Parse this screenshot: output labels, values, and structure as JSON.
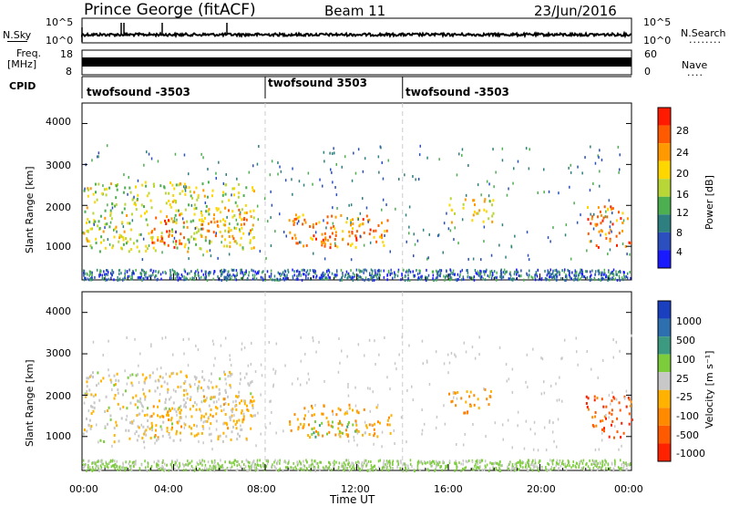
{
  "header": {
    "station": "Prince George (fitACF)",
    "beam": "Beam 11",
    "date": "23/Jun/2016"
  },
  "noise_panel": {
    "left_label": "N.Sky",
    "right_label": "N.Search",
    "right_dots": "........",
    "y_ticks": [
      "10^5",
      "10^0"
    ]
  },
  "freq_panel": {
    "left_label_line1": "Freq.",
    "left_label_line2": "[MHz]",
    "right_label": "Nave",
    "right_dots": "....",
    "left_ticks": [
      "18",
      "8"
    ],
    "right_ticks": [
      "60",
      "0"
    ]
  },
  "cpid_panel": {
    "label": "CPID",
    "segments": [
      {
        "name": "twofsound -3503",
        "start_hour": 0,
        "end_hour": 8
      },
      {
        "name": "twofsound 3503",
        "start_hour": 8,
        "end_hour": 14
      },
      {
        "name": "twofsound -3503",
        "start_hour": 14,
        "end_hour": 24
      }
    ]
  },
  "power_panel": {
    "ylabel": "Slant Range [km]",
    "y_ticks": [
      "4000",
      "3000",
      "2000",
      "1000"
    ],
    "colorbar_label": "Power [dB]",
    "colorbar_ticks": [
      "28",
      "24",
      "20",
      "16",
      "12",
      "8",
      "4"
    ],
    "colors": [
      "#1a1aff",
      "#2b4fbf",
      "#2e7f7f",
      "#4caf50",
      "#b8d636",
      "#ffd700",
      "#ff9900",
      "#ff5a00",
      "#ff1a00"
    ]
  },
  "velocity_panel": {
    "ylabel": "Slant Range [km]",
    "y_ticks": [
      "4000",
      "3000",
      "2000",
      "1000"
    ],
    "colorbar_label": "Velocity [m s⁻¹]",
    "colorbar_ticks": [
      "1000",
      "500",
      "100",
      "25",
      "-25",
      "-100",
      "-500",
      "-1000"
    ],
    "colors": [
      "#1a3fbf",
      "#2e6fb0",
      "#3c9a80",
      "#7ccc3c",
      "#c8c8c8",
      "#ffb300",
      "#ff8a00",
      "#ff5a00",
      "#ff2200"
    ]
  },
  "x_axis": {
    "label": "Time UT",
    "ticks": [
      "00:00",
      "04:00",
      "08:00",
      "12:00",
      "16:00",
      "20:00",
      "00:00"
    ]
  },
  "chart_data": {
    "type": "heatmap",
    "x_range_hours": [
      0,
      24
    ],
    "y_range_km": [
      180,
      4500
    ],
    "power_range_db": [
      0,
      30
    ],
    "velocity_range_ms": [
      -1000,
      1000
    ],
    "cpid_boundaries_hours": [
      8,
      14
    ],
    "echo_regions": [
      {
        "hours": [
          0,
          7.5
        ],
        "range_km": [
          900,
          2600
        ],
        "power_db": 16,
        "velocity_ms": -50
      },
      {
        "hours": [
          3,
          4.5
        ],
        "range_km": [
          1000,
          1800
        ],
        "power_db": 26,
        "velocity_ms": -300
      },
      {
        "hours": [
          5,
          7.5
        ],
        "range_km": [
          1200,
          2000
        ],
        "power_db": 22,
        "velocity_ms": -200
      },
      {
        "hours": [
          9,
          13.5
        ],
        "range_km": [
          1000,
          1800
        ],
        "power_db": 22,
        "velocity_ms": -300
      },
      {
        "hours": [
          10,
          12
        ],
        "range_km": [
          1000,
          1400
        ],
        "power_db": 27,
        "velocity_ms": 300
      },
      {
        "hours": [
          16,
          18
        ],
        "range_km": [
          1600,
          2200
        ],
        "power_db": 18,
        "velocity_ms": -400
      },
      {
        "hours": [
          22,
          24
        ],
        "range_km": [
          1000,
          2000
        ],
        "power_db": 24,
        "velocity_ms": -700
      }
    ]
  }
}
